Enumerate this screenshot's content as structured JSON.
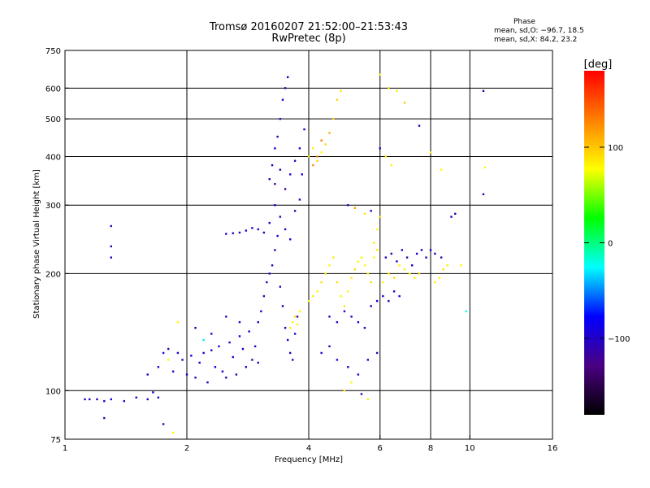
{
  "header": {
    "title_line1": "Tromsø 20160207 21:52:00–21:53:43",
    "title_line2": "RwPretec (8p)",
    "phase_title": "Phase",
    "phase_line1": "mean, sd,O: −96.7, 18.5",
    "phase_line2": "mean, sd,X:  84.2, 23.2"
  },
  "colorbar": {
    "unit_label": "[deg]",
    "ticks": [
      {
        "value": 100,
        "label": "100"
      },
      {
        "value": 0,
        "label": "0"
      },
      {
        "value": -100,
        "label": "−100"
      }
    ],
    "range": [
      -180,
      180
    ],
    "colors": [
      "#000000",
      "#4b0082",
      "#0000ff",
      "#00ffff",
      "#00ff00",
      "#ffff00",
      "#ff8000",
      "#ff0000"
    ]
  },
  "chart_data": {
    "type": "scatter",
    "title": "Tromsø 20160207 21:52:00–21:53:43",
    "subtitle": "RwPretec (8p)",
    "xlabel": "Frequency [MHz]",
    "ylabel": "Stationary phase Virtual Height [km]",
    "x_scale": "log",
    "y_scale": "log",
    "xlim": [
      1,
      16
    ],
    "ylim": [
      75,
      750
    ],
    "x_ticks": [
      {
        "value": 1,
        "label": "1"
      },
      {
        "value": 2,
        "label": "2"
      },
      {
        "value": 4,
        "label": "4"
      },
      {
        "value": 6,
        "label": "6"
      },
      {
        "value": 8,
        "label": "8"
      },
      {
        "value": 10,
        "label": "10"
      },
      {
        "value": 16,
        "label": "16"
      }
    ],
    "x_gridlines": [
      2,
      4,
      6,
      8,
      10
    ],
    "y_ticks": [
      {
        "value": 75,
        "label": "75"
      },
      {
        "value": 100,
        "label": "100"
      },
      {
        "value": 200,
        "label": "200"
      },
      {
        "value": 300,
        "label": "300"
      },
      {
        "value": 400,
        "label": "400"
      },
      {
        "value": 500,
        "label": "500"
      },
      {
        "value": 600,
        "label": "600"
      },
      {
        "value": 750,
        "label": "750"
      }
    ],
    "y_gridlines": [
      100,
      200,
      300,
      400,
      500,
      600
    ],
    "grid": true,
    "series": [
      {
        "values": [
          [
            1.12,
            95,
            -100
          ],
          [
            1.15,
            95,
            -95
          ],
          [
            1.2,
            95,
            -110
          ],
          [
            1.25,
            94,
            -100
          ],
          [
            1.3,
            95,
            -90
          ],
          [
            1.4,
            94,
            -105
          ],
          [
            1.5,
            96,
            -100
          ],
          [
            1.6,
            95,
            -110
          ],
          [
            1.65,
            99,
            -95
          ],
          [
            1.7,
            96,
            -90
          ],
          [
            1.25,
            85,
            -110
          ],
          [
            1.3,
            265,
            -100
          ],
          [
            1.3,
            235,
            -105
          ],
          [
            1.3,
            220,
            -95
          ],
          [
            1.75,
            82,
            -100
          ],
          [
            1.85,
            78,
            80
          ],
          [
            1.6,
            110,
            -100
          ],
          [
            1.7,
            115,
            -90
          ],
          [
            1.75,
            125,
            -95
          ],
          [
            1.8,
            120,
            80
          ],
          [
            1.8,
            128,
            -110
          ],
          [
            1.85,
            112,
            -100
          ],
          [
            1.9,
            125,
            -95
          ],
          [
            1.95,
            120,
            -105
          ],
          [
            2.0,
            110,
            -100
          ],
          [
            2.05,
            123,
            -90
          ],
          [
            2.1,
            108,
            -110
          ],
          [
            2.15,
            118,
            -100
          ],
          [
            2.2,
            125,
            -95
          ],
          [
            2.25,
            105,
            -100
          ],
          [
            2.3,
            127,
            -105
          ],
          [
            2.35,
            115,
            -90
          ],
          [
            2.4,
            130,
            -100
          ],
          [
            2.45,
            112,
            -95
          ],
          [
            2.5,
            108,
            -110
          ],
          [
            2.55,
            133,
            -100
          ],
          [
            2.6,
            122,
            -95
          ],
          [
            2.65,
            110,
            -105
          ],
          [
            2.7,
            138,
            -100
          ],
          [
            2.75,
            128,
            -90
          ],
          [
            2.8,
            115,
            -100
          ],
          [
            2.85,
            142,
            -95
          ],
          [
            2.9,
            120,
            -110
          ],
          [
            2.95,
            130,
            -100
          ],
          [
            3.0,
            118,
            -105
          ],
          [
            3.0,
            150,
            -100
          ],
          [
            3.05,
            160,
            -95
          ],
          [
            3.1,
            175,
            -110
          ],
          [
            3.15,
            190,
            -100
          ],
          [
            3.2,
            200,
            -95
          ],
          [
            3.25,
            210,
            -105
          ],
          [
            3.3,
            230,
            -100
          ],
          [
            3.35,
            250,
            -90
          ],
          [
            3.4,
            185,
            -100
          ],
          [
            3.45,
            165,
            -110
          ],
          [
            3.5,
            145,
            -100
          ],
          [
            3.55,
            135,
            -95
          ],
          [
            3.6,
            125,
            -105
          ],
          [
            3.65,
            120,
            -100
          ],
          [
            3.7,
            140,
            -95
          ],
          [
            3.75,
            155,
            -110
          ],
          [
            3.2,
            350,
            -110
          ],
          [
            3.25,
            380,
            -100
          ],
          [
            3.3,
            420,
            -95
          ],
          [
            3.35,
            450,
            -105
          ],
          [
            3.4,
            500,
            -100
          ],
          [
            3.45,
            560,
            -95
          ],
          [
            3.5,
            600,
            -110
          ],
          [
            3.55,
            640,
            -100
          ],
          [
            3.3,
            340,
            -120
          ],
          [
            3.4,
            370,
            -100
          ],
          [
            3.5,
            330,
            -115
          ],
          [
            3.6,
            360,
            -100
          ],
          [
            3.7,
            390,
            -105
          ],
          [
            3.8,
            420,
            -100
          ],
          [
            3.85,
            360,
            -95
          ],
          [
            3.9,
            470,
            -100
          ],
          [
            3.3,
            300,
            -100
          ],
          [
            3.4,
            280,
            -105
          ],
          [
            3.5,
            260,
            -95
          ],
          [
            3.6,
            245,
            -100
          ],
          [
            3.7,
            290,
            -110
          ],
          [
            3.8,
            310,
            -100
          ],
          [
            3.2,
            270,
            -95
          ],
          [
            3.1,
            255,
            -105
          ],
          [
            3.0,
            260,
            -100
          ],
          [
            2.9,
            262,
            -95
          ],
          [
            2.8,
            258,
            -100
          ],
          [
            2.7,
            255,
            -110
          ],
          [
            2.6,
            254,
            -100
          ],
          [
            2.5,
            253,
            -95
          ],
          [
            3.6,
            145,
            85
          ],
          [
            3.65,
            150,
            80
          ],
          [
            3.7,
            155,
            90
          ],
          [
            3.75,
            148,
            85
          ],
          [
            3.8,
            160,
            80
          ],
          [
            4.0,
            400,
            90
          ],
          [
            4.1,
            420,
            85
          ],
          [
            4.2,
            390,
            95
          ],
          [
            4.3,
            410,
            80
          ],
          [
            4.4,
            430,
            90
          ],
          [
            4.5,
            460,
            110
          ],
          [
            4.6,
            500,
            100
          ],
          [
            4.7,
            560,
            95
          ],
          [
            4.8,
            590,
            90
          ],
          [
            4.1,
            380,
            120
          ],
          [
            4.2,
            400,
            125
          ],
          [
            4.3,
            440,
            130
          ],
          [
            4.0,
            170,
            80
          ],
          [
            4.1,
            175,
            85
          ],
          [
            4.2,
            180,
            80
          ],
          [
            4.3,
            190,
            90
          ],
          [
            4.4,
            200,
            85
          ],
          [
            4.5,
            210,
            80
          ],
          [
            4.6,
            220,
            85
          ],
          [
            4.7,
            190,
            90
          ],
          [
            4.8,
            175,
            80
          ],
          [
            4.9,
            165,
            85
          ],
          [
            5.0,
            180,
            80
          ],
          [
            5.1,
            195,
            85
          ],
          [
            5.2,
            205,
            90
          ],
          [
            5.3,
            215,
            80
          ],
          [
            5.4,
            220,
            85
          ],
          [
            5.5,
            210,
            80
          ],
          [
            5.6,
            200,
            85
          ],
          [
            5.7,
            190,
            90
          ],
          [
            5.8,
            240,
            85
          ],
          [
            5.9,
            260,
            80
          ],
          [
            6.0,
            280,
            90
          ],
          [
            5.9,
            230,
            85
          ],
          [
            5.8,
            220,
            80
          ],
          [
            4.5,
            155,
            -100
          ],
          [
            4.7,
            150,
            -95
          ],
          [
            4.9,
            160,
            -110
          ],
          [
            5.1,
            155,
            -100
          ],
          [
            5.3,
            150,
            -95
          ],
          [
            5.5,
            145,
            -105
          ],
          [
            5.7,
            165,
            -100
          ],
          [
            5.9,
            170,
            -95
          ],
          [
            6.1,
            175,
            -100
          ],
          [
            6.3,
            170,
            -110
          ],
          [
            6.5,
            180,
            -100
          ],
          [
            6.7,
            175,
            -95
          ],
          [
            6.2,
            220,
            -100
          ],
          [
            6.4,
            225,
            -105
          ],
          [
            6.6,
            215,
            -95
          ],
          [
            6.8,
            230,
            -100
          ],
          [
            7.0,
            220,
            -110
          ],
          [
            7.2,
            210,
            -100
          ],
          [
            7.4,
            225,
            -95
          ],
          [
            7.6,
            230,
            -105
          ],
          [
            7.8,
            220,
            -100
          ],
          [
            8.0,
            230,
            -95
          ],
          [
            8.2,
            225,
            -100
          ],
          [
            8.5,
            220,
            -105
          ],
          [
            6.1,
            190,
            80
          ],
          [
            6.3,
            200,
            85
          ],
          [
            6.5,
            195,
            90
          ],
          [
            6.7,
            210,
            80
          ],
          [
            6.9,
            205,
            85
          ],
          [
            7.1,
            200,
            80
          ],
          [
            7.3,
            195,
            85
          ],
          [
            7.5,
            200,
            90
          ],
          [
            8.2,
            190,
            85
          ],
          [
            8.4,
            195,
            80
          ],
          [
            8.6,
            205,
            90
          ],
          [
            8.8,
            210,
            85
          ],
          [
            4.3,
            125,
            -100
          ],
          [
            4.5,
            130,
            -105
          ],
          [
            4.7,
            120,
            -95
          ],
          [
            5.0,
            115,
            -100
          ],
          [
            5.3,
            110,
            -100
          ],
          [
            5.6,
            120,
            -95
          ],
          [
            5.9,
            125,
            -105
          ],
          [
            6.0,
            650,
            80
          ],
          [
            6.3,
            600,
            90
          ],
          [
            6.6,
            590,
            85
          ],
          [
            6.9,
            550,
            100
          ],
          [
            7.5,
            480,
            -100
          ],
          [
            8.0,
            410,
            85
          ],
          [
            8.5,
            370,
            80
          ],
          [
            9.0,
            280,
            -100
          ],
          [
            9.2,
            285,
            -105
          ],
          [
            9.5,
            210,
            80
          ],
          [
            9.8,
            160,
            -20
          ],
          [
            10.8,
            320,
            -100
          ],
          [
            10.8,
            590,
            -100
          ],
          [
            10.9,
            375,
            80
          ],
          [
            5.0,
            300,
            -100
          ],
          [
            5.2,
            295,
            120
          ],
          [
            5.5,
            285,
            85
          ],
          [
            5.7,
            290,
            -95
          ],
          [
            6.0,
            420,
            -100
          ],
          [
            6.2,
            400,
            85
          ],
          [
            6.4,
            380,
            80
          ],
          [
            4.9,
            100,
            85
          ],
          [
            5.1,
            105,
            80
          ],
          [
            5.4,
            98,
            -100
          ],
          [
            5.6,
            95,
            85
          ],
          [
            1.9,
            150,
            80
          ],
          [
            2.1,
            145,
            -100
          ],
          [
            2.3,
            140,
            -95
          ],
          [
            2.5,
            155,
            -105
          ],
          [
            2.7,
            150,
            -100
          ],
          [
            2.2,
            135,
            -30
          ]
        ]
      }
    ]
  }
}
